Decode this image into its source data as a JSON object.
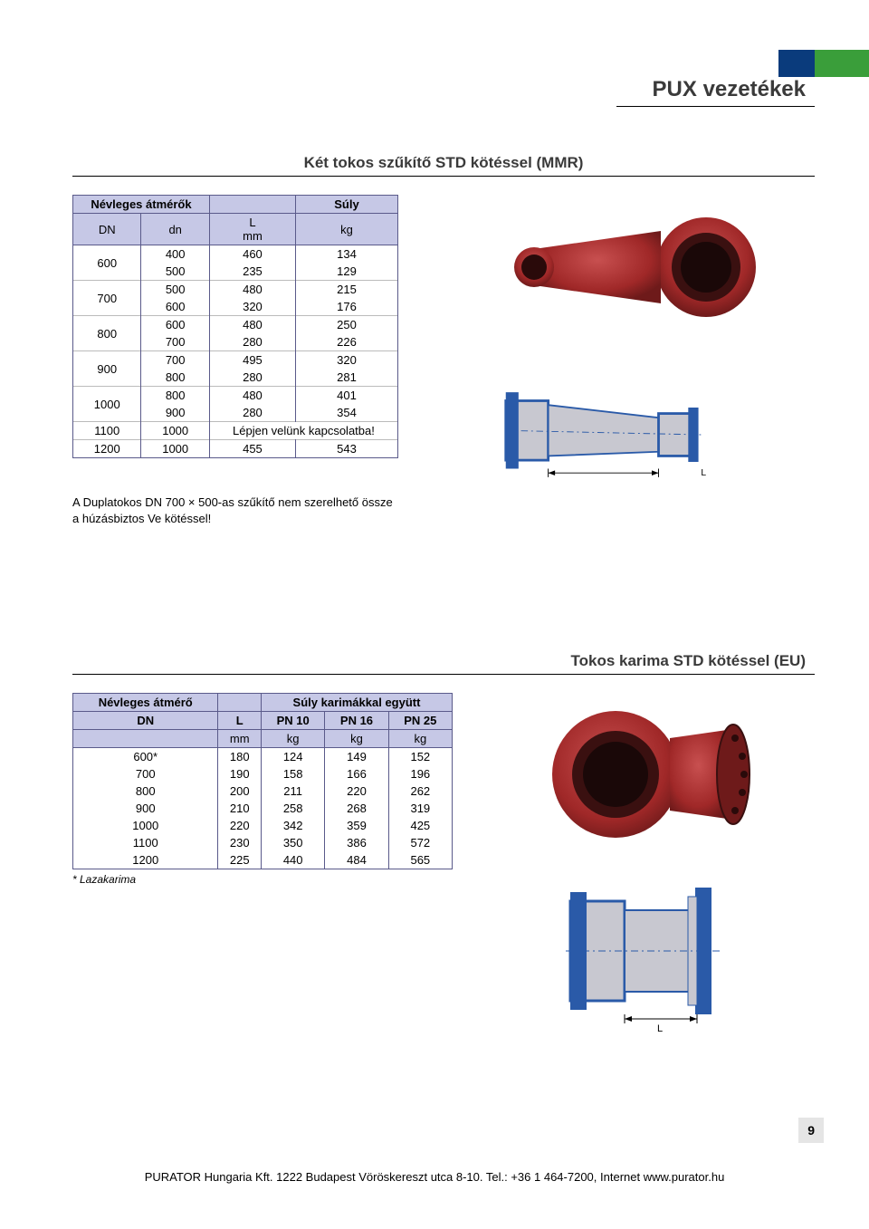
{
  "colors": {
    "header_blue": "#0a3b7c",
    "header_green": "#3a9e3a",
    "table_header_bg": "#c6c8e6",
    "table_border": "#5a5a8a",
    "fitting_red": "#a02828",
    "fitting_red_dark": "#6e1a1a",
    "diagram_blue": "#2a5aa8",
    "diagram_grey": "#c8c8d0",
    "pagenum_bg": "#e5e5e5"
  },
  "page": {
    "title": "PUX vezetékek",
    "number": "9",
    "footer": "PURATOR Hungaria Kft. 1222 Budapest Vöröskereszt utca 8-10. Tel.: +36 1 464-7200, Internet www.purator.hu"
  },
  "section1": {
    "subtitle": "Két tokos szűkítő STD kötéssel (MMR)",
    "headers": {
      "col_group1": "Névleges átmérők",
      "col_group2": "Súly",
      "dn": "DN",
      "dn_small": "dn",
      "L": "L",
      "mm": "mm",
      "kg": "kg"
    },
    "rows": [
      {
        "DN": "600",
        "sub": [
          {
            "dn": "400",
            "L": "460",
            "kg": "134"
          },
          {
            "dn": "500",
            "L": "235",
            "kg": "129"
          }
        ]
      },
      {
        "DN": "700",
        "sub": [
          {
            "dn": "500",
            "L": "480",
            "kg": "215"
          },
          {
            "dn": "600",
            "L": "320",
            "kg": "176"
          }
        ]
      },
      {
        "DN": "800",
        "sub": [
          {
            "dn": "600",
            "L": "480",
            "kg": "250"
          },
          {
            "dn": "700",
            "L": "280",
            "kg": "226"
          }
        ]
      },
      {
        "DN": "900",
        "sub": [
          {
            "dn": "700",
            "L": "495",
            "kg": "320"
          },
          {
            "dn": "800",
            "L": "280",
            "kg": "281"
          }
        ]
      },
      {
        "DN": "1000",
        "sub": [
          {
            "dn": "800",
            "L": "480",
            "kg": "401"
          },
          {
            "dn": "900",
            "L": "280",
            "kg": "354"
          }
        ]
      },
      {
        "DN": "1100",
        "sub": [
          {
            "dn": "1000",
            "L": "Lépjen velünk kapcsolatba!",
            "kg": ""
          }
        ]
      },
      {
        "DN": "1200",
        "sub": [
          {
            "dn": "1000",
            "L": "455",
            "kg": "543"
          }
        ]
      }
    ],
    "note_line1": "A Duplatokos DN 700 × 500-as szűkítő nem szerelhető össze",
    "note_line2": "a húzásbiztos Ve kötéssel!",
    "diagram_label_L": "L"
  },
  "section2": {
    "subtitle": "Tokos karima STD kötéssel (EU)",
    "headers": {
      "nevleges": "Névleges átmérő",
      "suly": "Súly karimákkal együtt",
      "DN": "DN",
      "L": "L",
      "pn10": "PN 10",
      "pn16": "PN 16",
      "pn25": "PN 25",
      "mm": "mm",
      "kg": "kg"
    },
    "rows": [
      {
        "DN": "600*",
        "L": "180",
        "pn10": "124",
        "pn16": "149",
        "pn25": "152"
      },
      {
        "DN": "700",
        "L": "190",
        "pn10": "158",
        "pn16": "166",
        "pn25": "196"
      },
      {
        "DN": "800",
        "L": "200",
        "pn10": "211",
        "pn16": "220",
        "pn25": "262"
      },
      {
        "DN": "900",
        "L": "210",
        "pn10": "258",
        "pn16": "268",
        "pn25": "319"
      },
      {
        "DN": "1000",
        "L": "220",
        "pn10": "342",
        "pn16": "359",
        "pn25": "425"
      },
      {
        "DN": "1100",
        "L": "230",
        "pn10": "350",
        "pn16": "386",
        "pn25": "572"
      },
      {
        "DN": "1200",
        "L": "225",
        "pn10": "440",
        "pn16": "484",
        "pn25": "565"
      }
    ],
    "footnote": "* Lazakarima",
    "diagram_label_L": "L"
  }
}
